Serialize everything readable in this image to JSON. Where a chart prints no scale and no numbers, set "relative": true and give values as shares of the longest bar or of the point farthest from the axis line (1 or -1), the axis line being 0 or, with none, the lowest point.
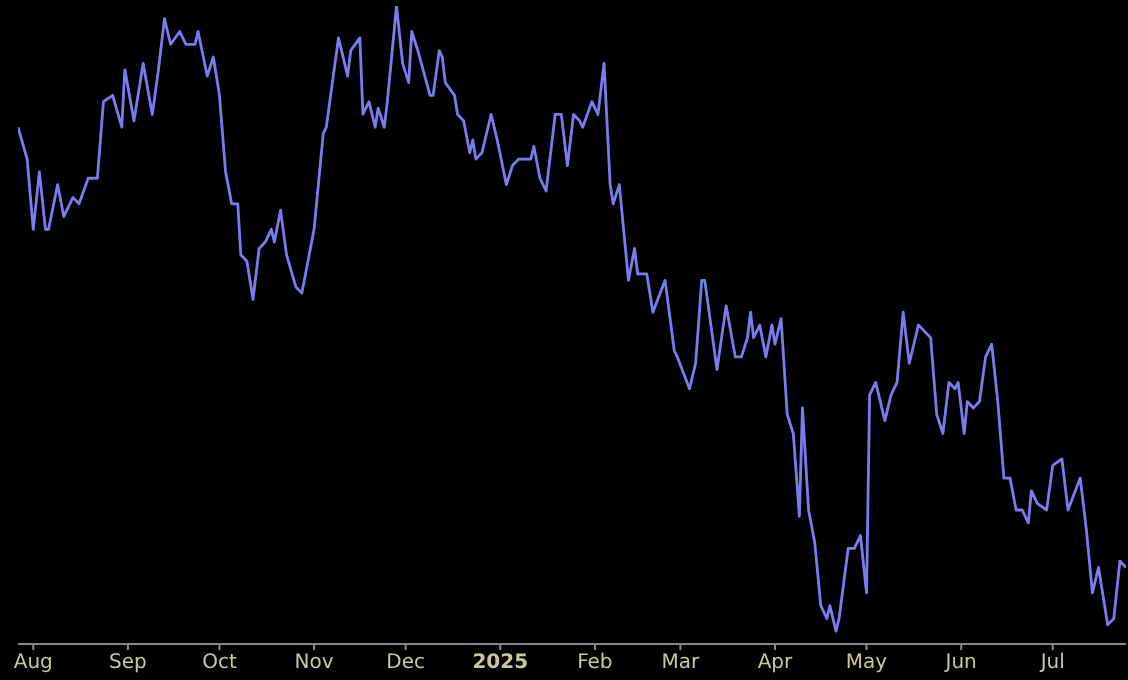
{
  "chart_data": {
    "type": "line",
    "relative": true,
    "grid": false,
    "legend": false,
    "marker": "none",
    "line_style": "solid",
    "xlim": [
      "2024-07-27",
      "2025-07-25"
    ],
    "xticks": [
      {
        "value": "2024-08-01",
        "label": "Aug"
      },
      {
        "value": "2024-09-01",
        "label": "Sep"
      },
      {
        "value": "2024-10-01",
        "label": "Oct"
      },
      {
        "value": "2024-11-01",
        "label": "Nov"
      },
      {
        "value": "2024-12-01",
        "label": "Dec"
      },
      {
        "value": "2025-01-01",
        "label": "2025"
      },
      {
        "value": "2025-02-01",
        "label": "Feb"
      },
      {
        "value": "2025-03-01",
        "label": "Mar"
      },
      {
        "value": "2025-04-01",
        "label": "Apr"
      },
      {
        "value": "2025-05-01",
        "label": "May"
      },
      {
        "value": "2025-06-01",
        "label": "Jun"
      },
      {
        "value": "2025-07-01",
        "label": "Jul"
      }
    ],
    "x": [
      "2024-07-27",
      "2024-07-30",
      "2024-08-01",
      "2024-08-03",
      "2024-08-05",
      "2024-08-06",
      "2024-08-09",
      "2024-08-11",
      "2024-08-14",
      "2024-08-16",
      "2024-08-19",
      "2024-08-22",
      "2024-08-24",
      "2024-08-27",
      "2024-08-30",
      "2024-08-31",
      "2024-09-03",
      "2024-09-06",
      "2024-09-09",
      "2024-09-11",
      "2024-09-13",
      "2024-09-15",
      "2024-09-18",
      "2024-09-20",
      "2024-09-23",
      "2024-09-24",
      "2024-09-27",
      "2024-09-29",
      "2024-10-01",
      "2024-10-03",
      "2024-10-05",
      "2024-10-07",
      "2024-10-08",
      "2024-10-10",
      "2024-10-12",
      "2024-10-14",
      "2024-10-16",
      "2024-10-18",
      "2024-10-19",
      "2024-10-21",
      "2024-10-23",
      "2024-10-26",
      "2024-10-28",
      "2024-10-30",
      "2024-11-01",
      "2024-11-04",
      "2024-11-05",
      "2024-11-09",
      "2024-11-12",
      "2024-11-13",
      "2024-11-16",
      "2024-11-17",
      "2024-11-19",
      "2024-11-21",
      "2024-11-22",
      "2024-11-24",
      "2024-11-25",
      "2024-11-28",
      "2024-11-30",
      "2024-12-02",
      "2024-12-03",
      "2024-12-05",
      "2024-12-09",
      "2024-12-10",
      "2024-12-12",
      "2024-12-13",
      "2024-12-14",
      "2024-12-17",
      "2024-12-18",
      "2024-12-20",
      "2024-12-22",
      "2024-12-23",
      "2024-12-24",
      "2024-12-26",
      "2024-12-29",
      "2024-12-31",
      "2025-01-03",
      "2025-01-05",
      "2025-01-07",
      "2025-01-11",
      "2025-01-12",
      "2025-01-14",
      "2025-01-16",
      "2025-01-19",
      "2025-01-21",
      "2025-01-23",
      "2025-01-25",
      "2025-01-27",
      "2025-01-28",
      "2025-01-31",
      "2025-02-02",
      "2025-02-04",
      "2025-02-06",
      "2025-02-07",
      "2025-02-09",
      "2025-02-12",
      "2025-02-14",
      "2025-02-15",
      "2025-02-18",
      "2025-02-20",
      "2025-02-24",
      "2025-02-27",
      "2025-02-28",
      "2025-03-04",
      "2025-03-06",
      "2025-03-08",
      "2025-03-09",
      "2025-03-13",
      "2025-03-16",
      "2025-03-19",
      "2025-03-21",
      "2025-03-23",
      "2025-03-24",
      "2025-03-25",
      "2025-03-27",
      "2025-03-29",
      "2025-03-31",
      "2025-04-01",
      "2025-04-03",
      "2025-04-05",
      "2025-04-07",
      "2025-04-09",
      "2025-04-10",
      "2025-04-12",
      "2025-04-14",
      "2025-04-16",
      "2025-04-18",
      "2025-04-19",
      "2025-04-21",
      "2025-04-22",
      "2025-04-25",
      "2025-04-27",
      "2025-04-29",
      "2025-05-01",
      "2025-05-02",
      "2025-05-04",
      "2025-05-05",
      "2025-05-07",
      "2025-05-09",
      "2025-05-11",
      "2025-05-13",
      "2025-05-15",
      "2025-05-18",
      "2025-05-20",
      "2025-05-22",
      "2025-05-24",
      "2025-05-26",
      "2025-05-28",
      "2025-05-30",
      "2025-05-31",
      "2025-06-02",
      "2025-06-03",
      "2025-06-05",
      "2025-06-07",
      "2025-06-09",
      "2025-06-11",
      "2025-06-13",
      "2025-06-15",
      "2025-06-17",
      "2025-06-19",
      "2025-06-21",
      "2025-06-23",
      "2025-06-24",
      "2025-06-26",
      "2025-06-29",
      "2025-07-01",
      "2025-07-04",
      "2025-07-06",
      "2025-07-10",
      "2025-07-12",
      "2025-07-14",
      "2025-07-16",
      "2025-07-19",
      "2025-07-21",
      "2025-07-23",
      "2025-07-25"
    ],
    "series": [
      {
        "color": "#7b7bf0",
        "values": [
          0.81,
          0.76,
          0.65,
          0.74,
          0.65,
          0.65,
          0.72,
          0.67,
          0.7,
          0.69,
          0.73,
          0.73,
          0.85,
          0.86,
          0.81,
          0.9,
          0.82,
          0.91,
          0.83,
          0.9,
          0.98,
          0.94,
          0.96,
          0.94,
          0.94,
          0.96,
          0.89,
          0.92,
          0.86,
          0.74,
          0.69,
          0.69,
          0.61,
          0.6,
          0.54,
          0.62,
          0.63,
          0.65,
          0.63,
          0.68,
          0.61,
          0.56,
          0.55,
          0.6,
          0.65,
          0.8,
          0.81,
          0.95,
          0.89,
          0.93,
          0.95,
          0.83,
          0.85,
          0.81,
          0.84,
          0.81,
          0.85,
          1.0,
          0.91,
          0.88,
          0.96,
          0.93,
          0.86,
          0.86,
          0.93,
          0.92,
          0.88,
          0.86,
          0.83,
          0.82,
          0.77,
          0.79,
          0.76,
          0.77,
          0.83,
          0.79,
          0.72,
          0.75,
          0.76,
          0.76,
          0.78,
          0.73,
          0.71,
          0.83,
          0.83,
          0.75,
          0.83,
          0.82,
          0.81,
          0.85,
          0.83,
          0.91,
          0.72,
          0.69,
          0.72,
          0.57,
          0.62,
          0.58,
          0.58,
          0.52,
          0.57,
          0.46,
          0.45,
          0.4,
          0.44,
          0.57,
          0.57,
          0.43,
          0.53,
          0.45,
          0.45,
          0.48,
          0.52,
          0.48,
          0.5,
          0.45,
          0.5,
          0.47,
          0.51,
          0.36,
          0.33,
          0.2,
          0.37,
          0.21,
          0.16,
          0.06,
          0.04,
          0.06,
          0.02,
          0.04,
          0.15,
          0.15,
          0.17,
          0.08,
          0.39,
          0.41,
          0.39,
          0.35,
          0.39,
          0.41,
          0.52,
          0.44,
          0.5,
          0.49,
          0.48,
          0.36,
          0.33,
          0.41,
          0.4,
          0.41,
          0.33,
          0.38,
          0.37,
          0.38,
          0.45,
          0.47,
          0.38,
          0.26,
          0.26,
          0.21,
          0.21,
          0.19,
          0.24,
          0.22,
          0.21,
          0.28,
          0.29,
          0.21,
          0.26,
          0.18,
          0.08,
          0.12,
          0.03,
          0.04,
          0.13,
          0.12
        ]
      }
    ]
  }
}
